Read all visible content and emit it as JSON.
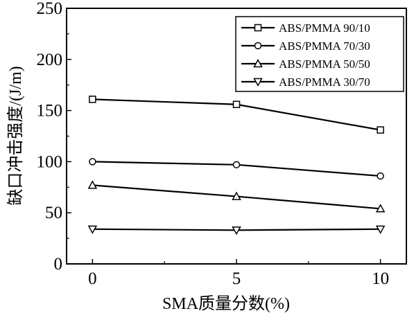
{
  "chart_data": {
    "type": "line",
    "title": "",
    "xlabel": "SMA质量分数(%)",
    "ylabel": "缺口冲击强度/(J/m)",
    "x": [
      0,
      5,
      10
    ],
    "x_ticks": [
      "0",
      "5",
      "10"
    ],
    "xlim": [
      -0.9,
      10.9
    ],
    "y_ticks": [
      "0",
      "50",
      "100",
      "150",
      "200",
      "250"
    ],
    "ylim": [
      0,
      250
    ],
    "grid": false,
    "legend_position": "top-right",
    "series": [
      {
        "name": "ABS/PMMA 90/10",
        "marker": "square",
        "values": [
          161,
          156,
          131
        ]
      },
      {
        "name": "ABS/PMMA 70/30",
        "marker": "circle",
        "values": [
          100,
          97,
          86
        ]
      },
      {
        "name": "ABS/PMMA 50/50",
        "marker": "triangle-up",
        "values": [
          77,
          66,
          54
        ]
      },
      {
        "name": "ABS/PMMA 30/70",
        "marker": "triangle-down",
        "values": [
          34,
          33,
          34
        ]
      }
    ]
  }
}
